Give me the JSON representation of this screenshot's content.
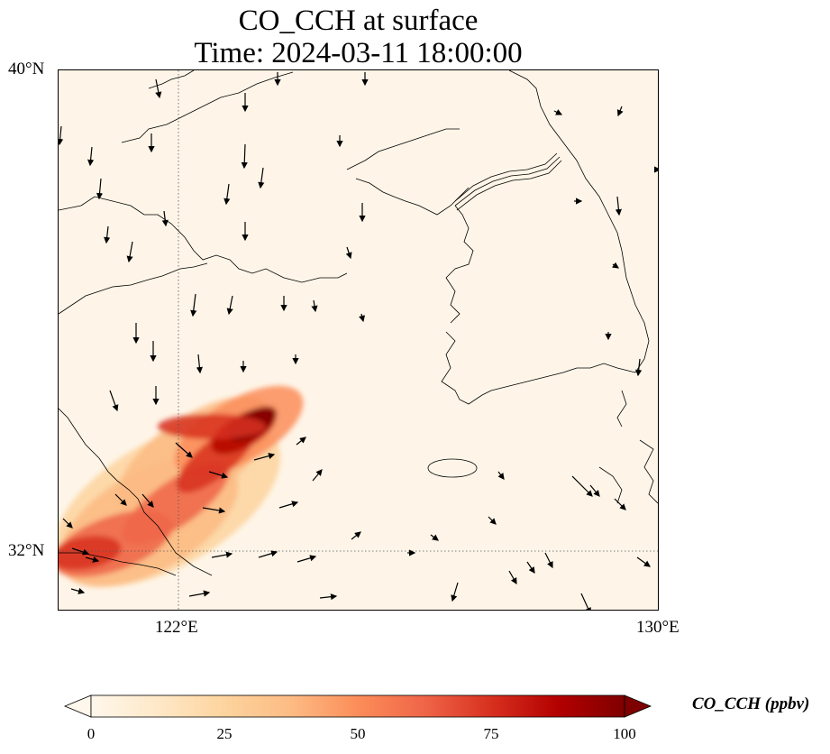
{
  "title": {
    "line1": "CO_CCH at surface",
    "line2": "Time: 2024-03-11 18:00:00"
  },
  "map": {
    "lat_labels": [
      "40°N",
      "32°N"
    ],
    "lon_labels": [
      "122°E",
      "130°E"
    ],
    "extent": {
      "lon_min": 120.0,
      "lon_max": 130.0,
      "lat_min": 31.0,
      "lat_max": 40.0
    },
    "gridlines": {
      "lon": [
        122
      ],
      "lat": [
        32
      ],
      "style": "dotted"
    },
    "features": [
      "coastline",
      "wind vectors",
      "CO_CCH shaded field"
    ]
  },
  "colorbar": {
    "label": "CO_CCH (ppbv)",
    "ticks": [
      "0",
      "25",
      "50",
      "75",
      "100"
    ],
    "min": 0,
    "max": 100,
    "extend": "both",
    "colormap": "OrRd",
    "colors": [
      "#fff7ec",
      "#fee8c8",
      "#fdd49e",
      "#fdbb84",
      "#fc8d59",
      "#ef6548",
      "#d7301f",
      "#b30000",
      "#7f0000"
    ]
  },
  "plume": {
    "description_units": "ppbv",
    "max_value": 100,
    "location": "southwest corner extending northeast toward 123.5E 33N"
  }
}
